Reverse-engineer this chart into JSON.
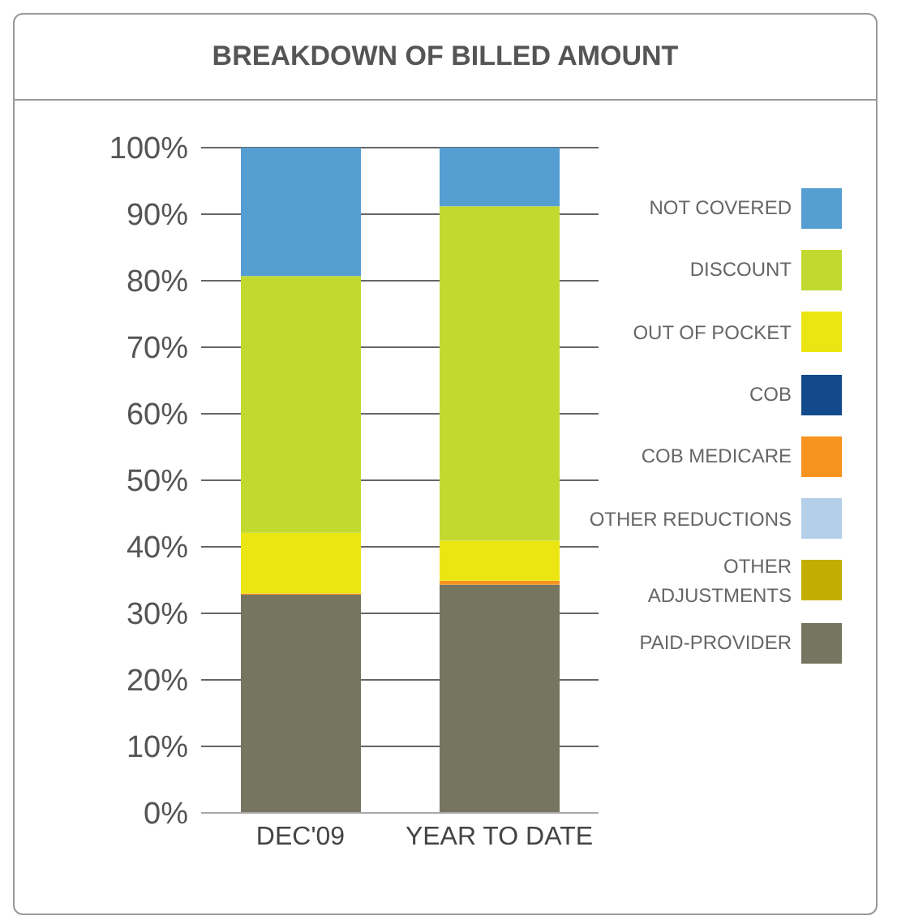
{
  "chart_data": {
    "type": "bar",
    "title": "BREAKDOWN OF BILLED AMOUNT",
    "categories": [
      "DEC'09",
      "YEAR TO DATE"
    ],
    "stacked": true,
    "ylim": [
      0,
      100
    ],
    "yticks": [
      {
        "value": 0,
        "label": "0%"
      },
      {
        "value": 10,
        "label": "10%"
      },
      {
        "value": 20,
        "label": "20%"
      },
      {
        "value": 30,
        "label": "30%"
      },
      {
        "value": 40,
        "label": "40%"
      },
      {
        "value": 50,
        "label": "50%"
      },
      {
        "value": 60,
        "label": "60%"
      },
      {
        "value": 70,
        "label": "70%"
      },
      {
        "value": 80,
        "label": "80%"
      },
      {
        "value": 90,
        "label": "90%"
      },
      {
        "value": 100,
        "label": "100%"
      }
    ],
    "grid": "y",
    "legend": "right",
    "series": [
      {
        "name": "PAID-PROVIDER",
        "color": "#767560",
        "values": [
          32.8,
          34.3
        ]
      },
      {
        "name": "OTHER ADJUSTMENTS",
        "color": "#c2ae00",
        "values": [
          0,
          0
        ]
      },
      {
        "name": "OTHER REDUCTIONS",
        "color": "#b4cfea",
        "values": [
          0,
          0
        ]
      },
      {
        "name": "COB MEDICARE",
        "color": "#f79420",
        "values": [
          0.2,
          0.6
        ]
      },
      {
        "name": "COB",
        "color": "#134a8b",
        "values": [
          0,
          0
        ]
      },
      {
        "name": "OUT OF POCKET",
        "color": "#ebe612",
        "values": [
          9.1,
          6.0
        ]
      },
      {
        "name": "DISCOUNT",
        "color": "#c2d92f",
        "values": [
          38.6,
          50.3
        ]
      },
      {
        "name": "NOT COVERED",
        "color": "#559ed2",
        "values": [
          19.3,
          8.8
        ]
      }
    ]
  }
}
